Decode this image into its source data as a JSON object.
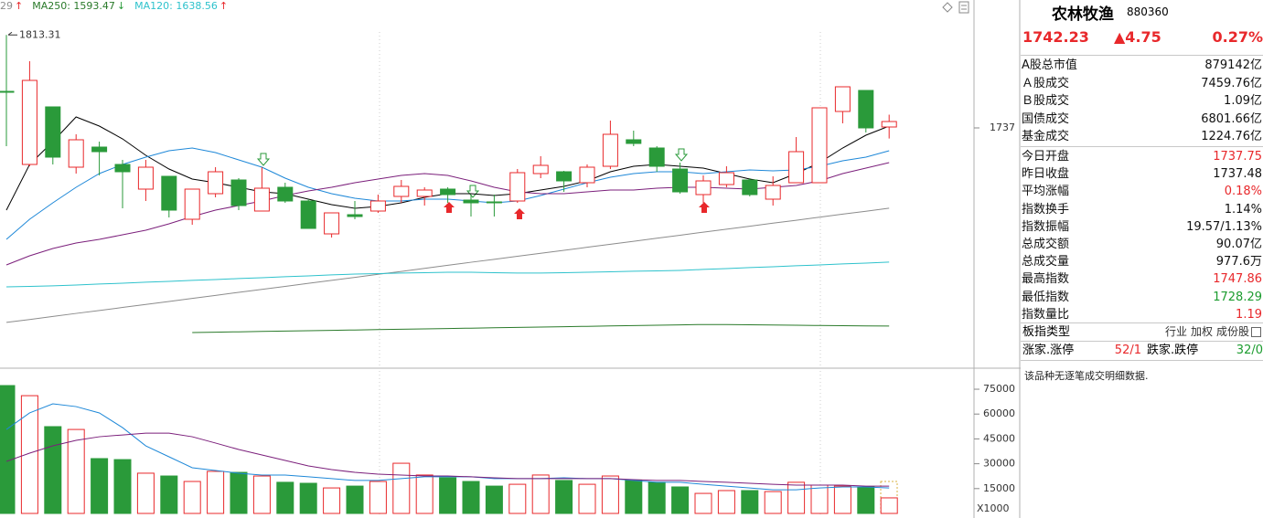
{
  "chart_data": [
    {
      "type": "candlestick",
      "up_color": "#e8282b",
      "down_color": "#2a9a3a",
      "ylim": [
        1542,
        1842
      ],
      "yticks": [
        1737
      ],
      "open": [
        1767,
        1707,
        1754.25,
        1704.75,
        1721.25,
        1707,
        1686.75,
        1697.25,
        1662,
        1683,
        1694.25,
        1668.75,
        1688.25,
        1677,
        1650,
        1665.75,
        1668.75,
        1680.75,
        1680.75,
        1686.75,
        1677.75,
        1676.25,
        1677,
        1699.5,
        1701,
        1692,
        1705.5,
        1727.25,
        1720.5,
        1703.25,
        1682.25,
        1690.5,
        1694.25,
        1678.5,
        1692,
        1692,
        1750.5,
        1767.75,
        1737.75
      ],
      "close": [
        1766.25,
        1776,
        1713,
        1727.25,
        1717.5,
        1701,
        1704.75,
        1669.5,
        1686.75,
        1701,
        1673.25,
        1687.5,
        1677,
        1654.5,
        1667.25,
        1664.25,
        1677,
        1689,
        1686,
        1682.25,
        1675.5,
        1675.5,
        1700.25,
        1706.25,
        1693.5,
        1704.75,
        1731.75,
        1724.25,
        1705.5,
        1684.5,
        1693.5,
        1700.25,
        1682.25,
        1689.75,
        1717.5,
        1753.5,
        1770.75,
        1737,
        1742.23
      ],
      "high": [
        1813.31,
        1791.75,
        1754.25,
        1731.75,
        1725.75,
        1710.75,
        1710.75,
        1697.25,
        1686.75,
        1704.75,
        1695.75,
        1704.75,
        1692,
        1678.5,
        1667.25,
        1677,
        1682.25,
        1694.25,
        1688.25,
        1688.25,
        1682.25,
        1682.25,
        1703.25,
        1713.75,
        1701.75,
        1707,
        1743,
        1734.75,
        1722,
        1708.5,
        1698,
        1705.5,
        1695.75,
        1697.25,
        1729.5,
        1753.5,
        1770.75,
        1767.75,
        1747.86
      ],
      "low": [
        1722,
        1705.5,
        1707,
        1699.5,
        1698,
        1671,
        1677,
        1663.5,
        1657.5,
        1680,
        1669.5,
        1668.75,
        1675.5,
        1654.5,
        1647,
        1662,
        1667.25,
        1675.5,
        1673.25,
        1675.5,
        1664.25,
        1664.25,
        1675.5,
        1695.75,
        1684.5,
        1688.25,
        1703.25,
        1722,
        1701,
        1683,
        1675.5,
        1688.25,
        1680.75,
        1673.25,
        1692,
        1692,
        1740.75,
        1733.25,
        1728.29
      ],
      "series": [
        {
          "name": "29",
          "arrow": "↑",
          "arrow_color": "#e8282b",
          "color": "#8c8c8c",
          "values": [
            1577.3,
            1579.7,
            1582.2,
            1584.7,
            1587.1,
            1589.6,
            1592.1,
            1594.5,
            1597.0,
            1599.5,
            1602.0,
            1604.4,
            1606.9,
            1609.4,
            1611.8,
            1614.3,
            1616.8,
            1619.2,
            1621.7,
            1624.2,
            1626.7,
            1629.1,
            1631.6,
            1634.1,
            1636.5,
            1639.0,
            1641.5,
            1643.9,
            1646.4,
            1648.9,
            1651.4,
            1653.8,
            1656.3,
            1658.8,
            1661.2,
            1663.7,
            1666.2,
            1668.6,
            1671.1
          ]
        },
        {
          "name": "MA250: 1593.47",
          "arrow": "↓",
          "arrow_color": "#2a9a3a",
          "color": "#2a7a2a",
          "values": [
            null,
            null,
            null,
            null,
            null,
            null,
            null,
            null,
            1569,
            1569.3,
            1569.6,
            1569.9,
            1570.2,
            1570.5,
            1570.8,
            1571.1,
            1571.4,
            1571.7,
            1572,
            1572.3,
            1572.6,
            1572.9,
            1573.2,
            1573.5,
            1573.8,
            1574.1,
            1574.4,
            1574.7,
            1575,
            1575.3,
            1575.6,
            1575.6,
            1575.4,
            1575.2,
            1575,
            1574.8,
            1574.6,
            1574.4,
            1574.3
          ]
        },
        {
          "name": "MA120: 1638.56",
          "arrow": "↑",
          "arrow_color": "#e8282b",
          "color": "#2ec2cc",
          "values": [
            1606.5,
            1606.9,
            1607.3,
            1608,
            1608.8,
            1609.5,
            1610.3,
            1611,
            1611.8,
            1612.5,
            1613.3,
            1614,
            1614.8,
            1615.5,
            1616.3,
            1617,
            1617.4,
            1617.8,
            1618.1,
            1618.5,
            1618.5,
            1618.1,
            1617.8,
            1617.8,
            1618.1,
            1618.5,
            1618.9,
            1619.3,
            1619.6,
            1620,
            1620.8,
            1621.5,
            1622.3,
            1623,
            1623.8,
            1624.5,
            1625.3,
            1626,
            1626.8
          ]
        },
        {
          "color": "#000000",
          "values": [
            1669.5,
            1707,
            1725.75,
            1746,
            1738.5,
            1728,
            1714.5,
            1703.25,
            1695,
            1692,
            1688.25,
            1684.5,
            1683,
            1678.5,
            1674,
            1671,
            1672.5,
            1675.5,
            1680,
            1683,
            1683,
            1681.5,
            1683,
            1686,
            1689,
            1693.5,
            1701,
            1705.5,
            1707,
            1705.5,
            1704,
            1699.5,
            1695,
            1692,
            1699.5,
            1708.5,
            1720.5,
            1731,
            1738.5
          ]
        },
        {
          "color": "#1e88d8",
          "values": [
            1645.5,
            1662,
            1675.5,
            1688.25,
            1699.5,
            1707,
            1713,
            1718.25,
            1720.5,
            1716.75,
            1710.75,
            1704.75,
            1695.75,
            1688.25,
            1683,
            1679.25,
            1677,
            1677,
            1678.5,
            1678.5,
            1677,
            1675.5,
            1677,
            1681.5,
            1686.75,
            1692,
            1696.5,
            1699.5,
            1701,
            1701,
            1699.5,
            1701,
            1702.5,
            1701.75,
            1702.5,
            1705.5,
            1710,
            1713,
            1718.25
          ]
        },
        {
          "color": "#7b1f7b",
          "values": [
            1624.5,
            1632,
            1638,
            1642.5,
            1645.5,
            1649.25,
            1653,
            1658.25,
            1664.25,
            1669.5,
            1673.25,
            1677,
            1681.5,
            1685.25,
            1688.25,
            1692,
            1695,
            1698,
            1699.5,
            1698,
            1693.5,
            1688.25,
            1684.5,
            1683,
            1683,
            1684.5,
            1686,
            1686,
            1687.5,
            1688.25,
            1688.25,
            1687.5,
            1686.75,
            1688.25,
            1689.75,
            1693.5,
            1699.5,
            1704,
            1708.5
          ]
        }
      ]
    },
    {
      "type": "bar",
      "unit_label": "X1000",
      "ylim": [
        0,
        86600
      ],
      "yticks": [
        15000,
        30000,
        45000,
        60000,
        75000
      ],
      "values": [
        77200,
        71100,
        52400,
        50700,
        33100,
        32500,
        24300,
        22600,
        19300,
        25400,
        24800,
        22600,
        18800,
        18200,
        15400,
        16500,
        19300,
        30300,
        23200,
        21500,
        19300,
        16500,
        17600,
        23200,
        19900,
        17600,
        22600,
        19900,
        18800,
        16000,
        12100,
        13800,
        13800,
        13200,
        18800,
        17100,
        16500,
        16000,
        9400
      ],
      "series": [
        {
          "color": "#1e88d8",
          "values": [
            50700,
            60700,
            66200,
            64500,
            60700,
            51800,
            40800,
            34200,
            27600,
            25900,
            24300,
            23200,
            23200,
            22100,
            21000,
            19900,
            19900,
            21000,
            22100,
            22100,
            22100,
            21000,
            21000,
            21000,
            21500,
            21000,
            21000,
            19900,
            18800,
            18800,
            17600,
            16500,
            15400,
            14300,
            14300,
            15400,
            16000,
            16000,
            15400
          ]
        },
        {
          "color": "#7b1f7b",
          "values": [
            31400,
            36400,
            40800,
            44100,
            46300,
            47400,
            48500,
            48500,
            46300,
            42500,
            38600,
            35300,
            32000,
            28700,
            26500,
            24800,
            23700,
            23200,
            22600,
            22600,
            22100,
            21500,
            21000,
            21000,
            21000,
            21000,
            21000,
            20400,
            19900,
            19900,
            19300,
            18800,
            18200,
            17600,
            17100,
            17100,
            17100,
            16500,
            16500
          ]
        }
      ]
    }
  ],
  "panel": {
    "name": "农林牧渔",
    "code": "880360",
    "price": "1742.23",
    "change": "▲4.75",
    "pct": "0.27%",
    "price_color": "#e8282b",
    "market_rows": [
      {
        "label": "A股总市值",
        "value": "879142亿"
      },
      {
        "label": "Ａ股成交",
        "value": "7459.76亿"
      },
      {
        "label": "Ｂ股成交",
        "value": "1.09亿"
      },
      {
        "label": "国债成交",
        "value": "6801.66亿"
      },
      {
        "label": "基金成交",
        "value": "1224.76亿"
      }
    ],
    "index_rows": [
      {
        "label": "今日开盘",
        "value": "1737.75",
        "color": "#e8282b"
      },
      {
        "label": "昨日收盘",
        "value": "1737.48"
      },
      {
        "label": "平均涨幅",
        "value": "0.18%",
        "color": "#e8282b"
      },
      {
        "label": "指数换手",
        "value": "1.14%"
      },
      {
        "label": "指数振幅",
        "value": "19.57/1.13%"
      },
      {
        "label": "总成交额",
        "value": "90.07亿"
      },
      {
        "label": "总成交量",
        "value": "977.6万"
      },
      {
        "label": "最高指数",
        "value": "1747.86",
        "color": "#e8282b"
      },
      {
        "label": "最低指数",
        "value": "1728.29",
        "color": "#1c9c2f"
      },
      {
        "label": "指数量比",
        "value": "1.19",
        "color": "#e8282b"
      }
    ],
    "type_row": {
      "label": "板指类型",
      "items": [
        "行业",
        "加权",
        "成份股"
      ]
    },
    "breadth": {
      "up_label": "涨家.涨停",
      "up_value": "52/1",
      "up_color": "#e8282b",
      "down_label": "跌家.跌停",
      "down_value": "32/0",
      "down_color": "#1c9c2f"
    },
    "note": "该品种无逐笔成交明细数据."
  }
}
